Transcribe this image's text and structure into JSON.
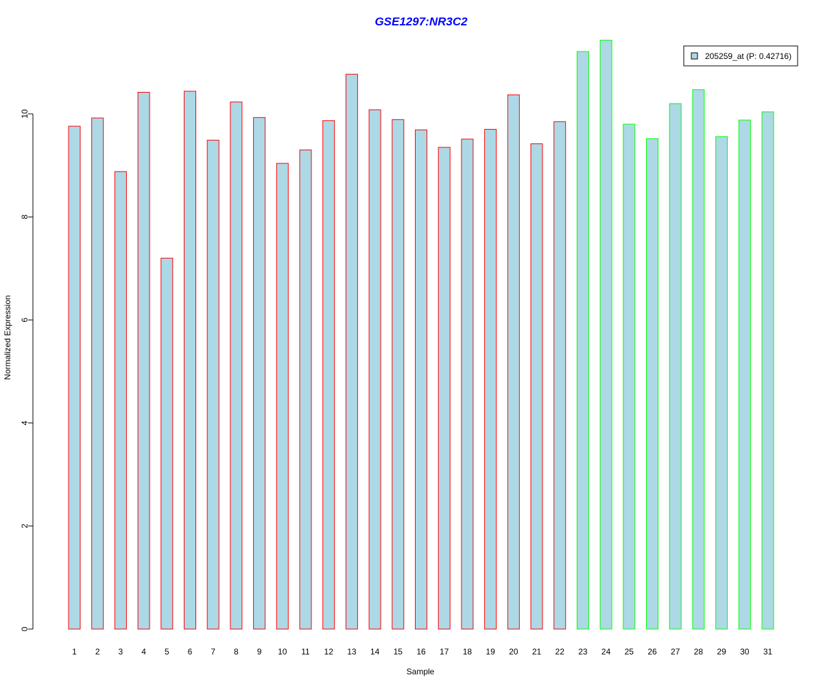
{
  "chart_data": {
    "type": "bar",
    "title": "GSE1297:NR3C2",
    "xlabel": "Sample",
    "ylabel": "Normalized Expression",
    "categories": [
      "1",
      "2",
      "3",
      "4",
      "5",
      "6",
      "7",
      "8",
      "9",
      "10",
      "11",
      "12",
      "13",
      "14",
      "15",
      "16",
      "17",
      "18",
      "19",
      "20",
      "21",
      "22",
      "23",
      "24",
      "25",
      "26",
      "27",
      "28",
      "29",
      "30",
      "31"
    ],
    "series": [
      {
        "name": "205259_at (P: 0.42716)",
        "values": [
          9.76,
          9.92,
          8.88,
          10.42,
          7.2,
          10.44,
          9.49,
          10.23,
          9.93,
          9.04,
          9.3,
          9.87,
          10.77,
          10.08,
          9.89,
          9.69,
          9.35,
          9.51,
          9.7,
          10.37,
          9.42,
          9.85,
          11.21,
          11.43,
          9.8,
          9.52,
          10.2,
          10.47,
          9.56,
          9.88,
          10.04
        ]
      }
    ],
    "groups": [
      "1",
      "1",
      "1",
      "1",
      "1",
      "1",
      "1",
      "1",
      "1",
      "1",
      "1",
      "1",
      "1",
      "1",
      "1",
      "1",
      "1",
      "1",
      "1",
      "1",
      "1",
      "1",
      "2",
      "2",
      "2",
      "2",
      "2",
      "2",
      "2",
      "2",
      "2"
    ],
    "yticks": [
      "0",
      "2",
      "4",
      "6",
      "8",
      "10"
    ],
    "ylim": [
      0,
      11.8
    ],
    "grid": false,
    "legend_position": "top-right",
    "colors": {
      "bar_fill": "#add8e6",
      "group_1_border": "#ff0000",
      "group_2_border": "#00ff00",
      "title": "#0000ff",
      "axis": "#000000"
    }
  }
}
